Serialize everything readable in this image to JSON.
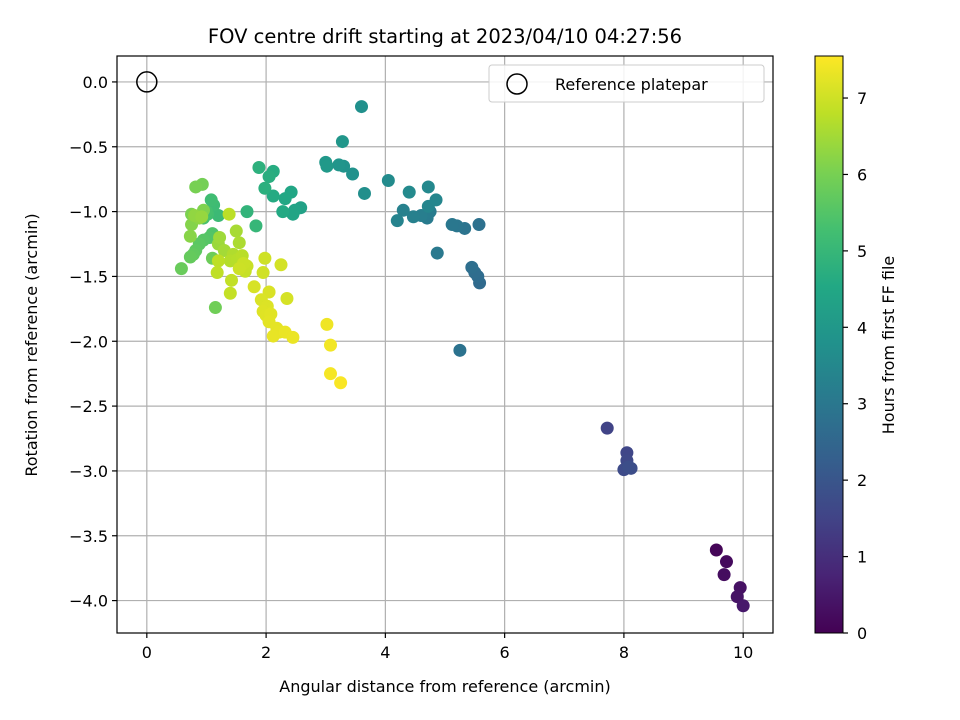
{
  "chart_data": {
    "type": "scatter",
    "title": "FOV centre drift starting at 2023/04/10 04:27:56",
    "xlabel": "Angular distance from reference (arcmin)",
    "ylabel": "Rotation from reference (arcmin)",
    "colorbar_label": "Hours from first FF file",
    "xlim": [
      -0.5,
      10.5
    ],
    "ylim": [
      -4.25,
      0.2
    ],
    "clim": [
      0,
      7.55
    ],
    "colormap": "viridis",
    "grid": true,
    "legend_position": "upper right",
    "x_ticks": [
      0,
      2,
      4,
      6,
      8,
      10
    ],
    "x_tick_labels": [
      "0",
      "2",
      "4",
      "6",
      "8",
      "10"
    ],
    "y_ticks": [
      0.0,
      -0.5,
      -1.0,
      -1.5,
      -2.0,
      -2.5,
      -3.0,
      -3.5,
      -4.0
    ],
    "y_tick_labels": [
      "0.0",
      "−0.5",
      "−1.0",
      "−1.5",
      "−2.0",
      "−2.5",
      "−3.0",
      "−3.5",
      "−4.0"
    ],
    "c_ticks": [
      0,
      1,
      2,
      3,
      4,
      5,
      6,
      7
    ],
    "c_tick_labels": [
      "0",
      "1",
      "2",
      "3",
      "4",
      "5",
      "6",
      "7"
    ],
    "reference": {
      "label": "Reference platepar",
      "x": 0,
      "y": 0
    },
    "points": [
      {
        "x": 9.55,
        "y": -3.61,
        "c": 0.1
      },
      {
        "x": 9.72,
        "y": -3.7,
        "c": 0.2
      },
      {
        "x": 9.68,
        "y": -3.8,
        "c": 0.25
      },
      {
        "x": 9.95,
        "y": -3.9,
        "c": 0.35
      },
      {
        "x": 9.9,
        "y": -3.97,
        "c": 0.4
      },
      {
        "x": 10.0,
        "y": -4.04,
        "c": 0.5
      },
      {
        "x": 7.72,
        "y": -2.67,
        "c": 1.5
      },
      {
        "x": 8.05,
        "y": -2.86,
        "c": 1.6
      },
      {
        "x": 8.05,
        "y": -2.92,
        "c": 1.65
      },
      {
        "x": 8.0,
        "y": -2.99,
        "c": 1.7
      },
      {
        "x": 8.12,
        "y": -2.98,
        "c": 1.75
      },
      {
        "x": 8.08,
        "y": -2.97,
        "c": 1.8
      },
      {
        "x": 5.58,
        "y": -1.55,
        "c": 2.6
      },
      {
        "x": 5.55,
        "y": -1.5,
        "c": 2.65
      },
      {
        "x": 5.5,
        "y": -1.47,
        "c": 2.7
      },
      {
        "x": 5.45,
        "y": -1.43,
        "c": 2.75
      },
      {
        "x": 5.57,
        "y": -1.1,
        "c": 2.8
      },
      {
        "x": 5.25,
        "y": -2.07,
        "c": 2.85
      },
      {
        "x": 5.33,
        "y": -1.13,
        "c": 2.9
      },
      {
        "x": 5.2,
        "y": -1.11,
        "c": 2.95
      },
      {
        "x": 5.12,
        "y": -1.1,
        "c": 3.0
      },
      {
        "x": 4.87,
        "y": -1.32,
        "c": 3.05
      },
      {
        "x": 4.7,
        "y": -1.05,
        "c": 3.1
      },
      {
        "x": 4.75,
        "y": -1.0,
        "c": 3.15
      },
      {
        "x": 4.6,
        "y": -1.03,
        "c": 3.2
      },
      {
        "x": 4.47,
        "y": -1.04,
        "c": 3.25
      },
      {
        "x": 4.3,
        "y": -0.99,
        "c": 3.3
      },
      {
        "x": 4.2,
        "y": -1.07,
        "c": 3.35
      },
      {
        "x": 4.72,
        "y": -0.96,
        "c": 3.4
      },
      {
        "x": 4.85,
        "y": -0.91,
        "c": 3.45
      },
      {
        "x": 4.72,
        "y": -0.81,
        "c": 3.5
      },
      {
        "x": 4.4,
        "y": -0.85,
        "c": 3.55
      },
      {
        "x": 4.05,
        "y": -0.76,
        "c": 3.6
      },
      {
        "x": 3.65,
        "y": -0.86,
        "c": 3.7
      },
      {
        "x": 3.6,
        "y": -0.19,
        "c": 3.75
      },
      {
        "x": 3.45,
        "y": -0.71,
        "c": 3.8
      },
      {
        "x": 3.3,
        "y": -0.65,
        "c": 3.85
      },
      {
        "x": 3.22,
        "y": -0.64,
        "c": 3.9
      },
      {
        "x": 3.28,
        "y": -0.46,
        "c": 3.95
      },
      {
        "x": 3.0,
        "y": -0.62,
        "c": 4.0
      },
      {
        "x": 3.02,
        "y": -0.65,
        "c": 4.05
      },
      {
        "x": 2.58,
        "y": -0.97,
        "c": 4.3
      },
      {
        "x": 2.48,
        "y": -0.99,
        "c": 4.35
      },
      {
        "x": 2.45,
        "y": -1.02,
        "c": 4.4
      },
      {
        "x": 2.42,
        "y": -0.85,
        "c": 4.45
      },
      {
        "x": 2.32,
        "y": -0.9,
        "c": 4.5
      },
      {
        "x": 2.28,
        "y": -1.0,
        "c": 4.55
      },
      {
        "x": 2.12,
        "y": -0.88,
        "c": 4.6
      },
      {
        "x": 2.12,
        "y": -0.69,
        "c": 4.65
      },
      {
        "x": 2.05,
        "y": -0.73,
        "c": 4.7
      },
      {
        "x": 1.98,
        "y": -0.82,
        "c": 4.75
      },
      {
        "x": 1.88,
        "y": -0.66,
        "c": 4.8
      },
      {
        "x": 1.68,
        "y": -1.0,
        "c": 4.9
      },
      {
        "x": 1.83,
        "y": -1.11,
        "c": 5.0
      },
      {
        "x": 1.2,
        "y": -1.03,
        "c": 5.1
      },
      {
        "x": 1.12,
        "y": -0.95,
        "c": 5.15
      },
      {
        "x": 1.08,
        "y": -0.91,
        "c": 5.2
      },
      {
        "x": 1.02,
        "y": -1.02,
        "c": 5.25
      },
      {
        "x": 1.0,
        "y": -1.0,
        "c": 5.3
      },
      {
        "x": 0.95,
        "y": -1.05,
        "c": 5.35
      },
      {
        "x": 1.18,
        "y": -1.22,
        "c": 5.4
      },
      {
        "x": 1.1,
        "y": -1.17,
        "c": 5.45
      },
      {
        "x": 1.05,
        "y": -1.2,
        "c": 5.5
      },
      {
        "x": 0.95,
        "y": -1.22,
        "c": 5.55
      },
      {
        "x": 0.88,
        "y": -1.25,
        "c": 5.6
      },
      {
        "x": 0.82,
        "y": -1.3,
        "c": 5.65
      },
      {
        "x": 0.78,
        "y": -1.33,
        "c": 5.7
      },
      {
        "x": 0.73,
        "y": -1.35,
        "c": 5.75
      },
      {
        "x": 0.58,
        "y": -1.44,
        "c": 5.8
      },
      {
        "x": 1.1,
        "y": -1.36,
        "c": 5.85
      },
      {
        "x": 1.15,
        "y": -1.74,
        "c": 5.9
      },
      {
        "x": 0.93,
        "y": -0.79,
        "c": 5.95
      },
      {
        "x": 0.82,
        "y": -0.81,
        "c": 6.0
      },
      {
        "x": 0.75,
        "y": -1.02,
        "c": 6.05
      },
      {
        "x": 0.95,
        "y": -0.99,
        "c": 6.1
      },
      {
        "x": 0.75,
        "y": -1.1,
        "c": 6.15
      },
      {
        "x": 0.73,
        "y": -1.19,
        "c": 6.2
      },
      {
        "x": 0.88,
        "y": -1.05,
        "c": 6.25
      },
      {
        "x": 0.8,
        "y": -1.03,
        "c": 6.3
      },
      {
        "x": 0.92,
        "y": -1.04,
        "c": 6.35
      },
      {
        "x": 1.2,
        "y": -1.25,
        "c": 6.4
      },
      {
        "x": 1.22,
        "y": -1.2,
        "c": 6.45
      },
      {
        "x": 1.3,
        "y": -1.3,
        "c": 6.5
      },
      {
        "x": 1.5,
        "y": -1.15,
        "c": 6.55
      },
      {
        "x": 1.55,
        "y": -1.24,
        "c": 6.6
      },
      {
        "x": 1.45,
        "y": -1.33,
        "c": 6.65
      },
      {
        "x": 1.4,
        "y": -1.38,
        "c": 6.7
      },
      {
        "x": 1.52,
        "y": -1.37,
        "c": 6.72
      },
      {
        "x": 1.6,
        "y": -1.34,
        "c": 6.75
      },
      {
        "x": 1.38,
        "y": -1.02,
        "c": 6.78
      },
      {
        "x": 1.2,
        "y": -1.38,
        "c": 6.8
      },
      {
        "x": 1.18,
        "y": -1.47,
        "c": 6.82
      },
      {
        "x": 1.42,
        "y": -1.53,
        "c": 6.85
      },
      {
        "x": 1.4,
        "y": -1.63,
        "c": 6.88
      },
      {
        "x": 1.65,
        "y": -1.46,
        "c": 6.9
      },
      {
        "x": 1.68,
        "y": -1.42,
        "c": 6.92
      },
      {
        "x": 1.62,
        "y": -1.4,
        "c": 6.95
      },
      {
        "x": 1.55,
        "y": -1.44,
        "c": 6.97
      },
      {
        "x": 1.98,
        "y": -1.36,
        "c": 7.0
      },
      {
        "x": 1.95,
        "y": -1.47,
        "c": 7.02
      },
      {
        "x": 2.25,
        "y": -1.41,
        "c": 7.05
      },
      {
        "x": 2.35,
        "y": -1.67,
        "c": 7.08
      },
      {
        "x": 1.8,
        "y": -1.58,
        "c": 7.1
      },
      {
        "x": 2.05,
        "y": -1.62,
        "c": 7.12
      },
      {
        "x": 1.92,
        "y": -1.68,
        "c": 7.14
      },
      {
        "x": 2.02,
        "y": -1.73,
        "c": 7.16
      },
      {
        "x": 1.95,
        "y": -1.77,
        "c": 7.18
      },
      {
        "x": 2.0,
        "y": -1.8,
        "c": 7.2
      },
      {
        "x": 2.08,
        "y": -1.79,
        "c": 7.22
      },
      {
        "x": 2.05,
        "y": -1.85,
        "c": 7.24
      },
      {
        "x": 2.18,
        "y": -1.9,
        "c": 7.26
      },
      {
        "x": 2.22,
        "y": -1.93,
        "c": 7.28
      },
      {
        "x": 2.12,
        "y": -1.96,
        "c": 7.3
      },
      {
        "x": 2.32,
        "y": -1.93,
        "c": 7.32
      },
      {
        "x": 2.45,
        "y": -1.97,
        "c": 7.34
      },
      {
        "x": 3.02,
        "y": -1.87,
        "c": 7.38
      },
      {
        "x": 3.08,
        "y": -2.03,
        "c": 7.42
      },
      {
        "x": 3.08,
        "y": -2.25,
        "c": 7.46
      },
      {
        "x": 3.25,
        "y": -2.32,
        "c": 7.5
      }
    ]
  }
}
